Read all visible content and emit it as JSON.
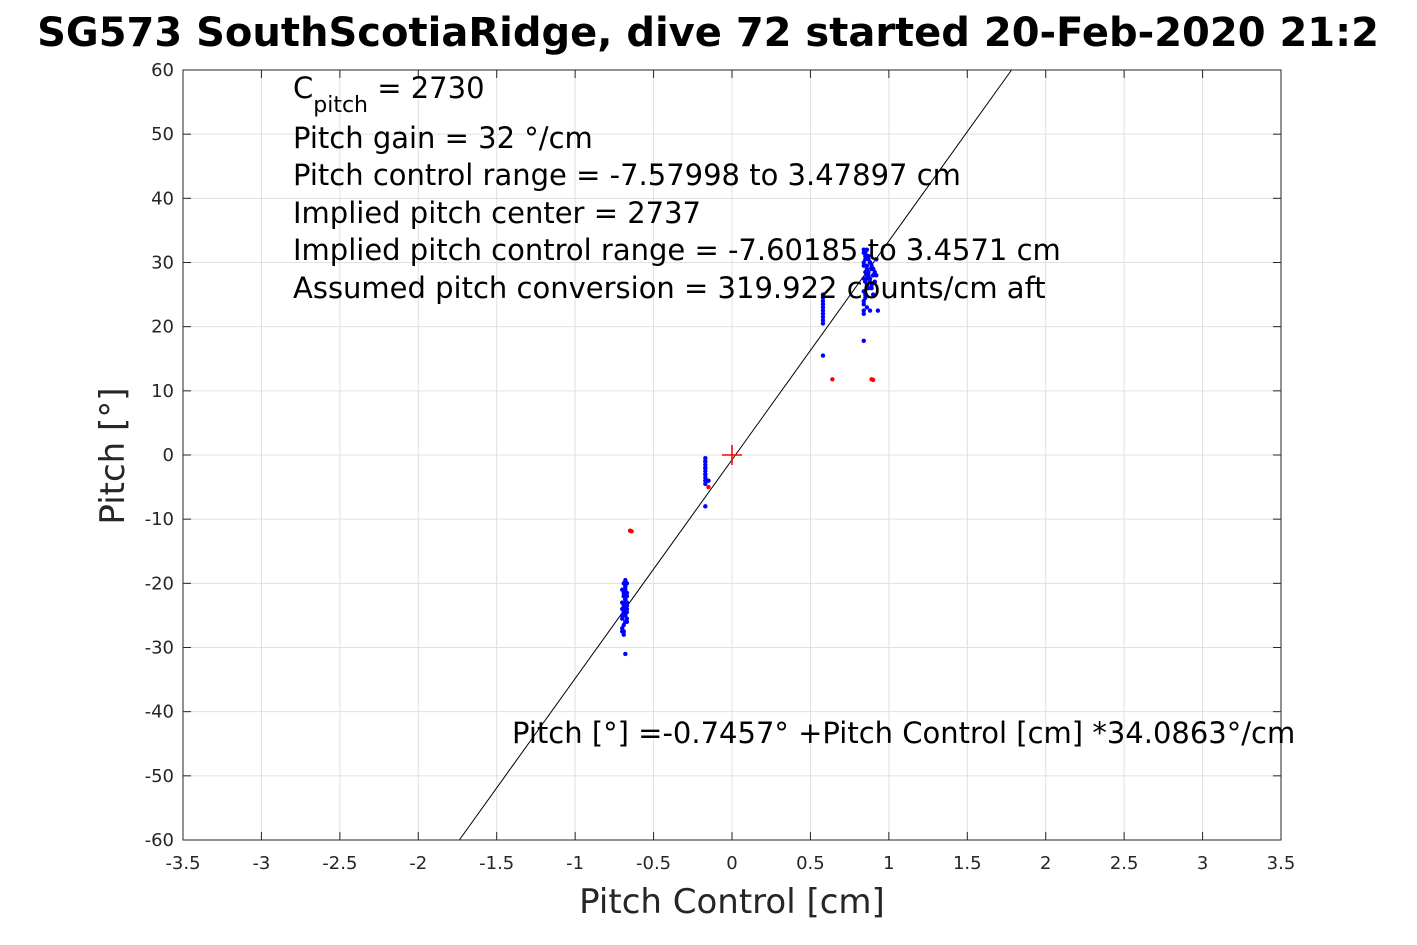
{
  "chart_data": {
    "type": "scatter",
    "title": "SG573 SouthScotiaRidge, dive 72 started 20-Feb-2020 21:2",
    "xlabel": "Pitch Control [cm]",
    "ylabel": "Pitch [°]",
    "xlim": [
      -3.5,
      3.5
    ],
    "ylim": [
      -60,
      60
    ],
    "x_ticks": [
      -3.5,
      -3,
      -2.5,
      -2,
      -1.5,
      -1,
      -0.5,
      0,
      0.5,
      1,
      1.5,
      2,
      2.5,
      3,
      3.5
    ],
    "x_tick_labels": [
      "-3.5",
      "-3",
      "-2.5",
      "-2",
      "-1.5",
      "-1",
      "-0.5",
      "0",
      "0.5",
      "1",
      "1.5",
      "2",
      "2.5",
      "3",
      "3.5"
    ],
    "y_ticks": [
      -60,
      -50,
      -40,
      -30,
      -20,
      -10,
      0,
      10,
      20,
      30,
      40,
      50,
      60
    ],
    "y_tick_labels": [
      "-60",
      "-50",
      "-40",
      "-30",
      "-20",
      "-10",
      "0",
      "10",
      "20",
      "30",
      "40",
      "50",
      "60"
    ],
    "grid": true,
    "annotations": {
      "c_pitch_main": "C",
      "c_pitch_sub": "pitch",
      "c_pitch_value": " = 2730",
      "pitch_gain": "Pitch gain = 32 °/cm",
      "pitch_control_range": "Pitch control range = -7.57998 to 3.47897 cm",
      "implied_center": "Implied pitch center = 2737",
      "implied_range": "Implied pitch control range = -7.60185 to 3.4571 cm",
      "assumed_conversion": "Assumed pitch conversion = 319.922 counts/cm aft",
      "fit_equation": "Pitch [°] =-0.7457° +Pitch Control [cm] *34.0863°/cm"
    },
    "fit_line": {
      "intercept": -0.7457,
      "slope": 34.0863,
      "color": "#000000"
    },
    "center_marker": {
      "x": 0,
      "y": 0,
      "color": "#ff0000"
    },
    "series": [
      {
        "color": "#0000ff",
        "x": [
          -0.7,
          -0.69,
          -0.68,
          -0.67,
          -0.7,
          -0.69,
          -0.68,
          -0.67,
          -0.7,
          -0.68,
          -0.69,
          -0.67,
          -0.7,
          -0.68,
          -0.69,
          -0.67,
          -0.7,
          -0.69,
          -0.68,
          -0.67,
          -0.7,
          -0.69,
          -0.68,
          -0.67,
          -0.69,
          -0.68,
          -0.68,
          -0.67,
          -0.68,
          -0.67,
          -0.67,
          -0.69,
          -0.68,
          -0.7,
          -0.69,
          -0.69,
          -0.68,
          -0.68,
          -0.68,
          -0.17,
          -0.17,
          -0.17,
          -0.17,
          -0.17,
          -0.17,
          -0.17,
          -0.17,
          -0.17,
          -0.17,
          -0.16,
          -0.17,
          -0.17,
          -0.17,
          -0.15,
          0.58,
          0.58,
          0.58,
          0.58,
          0.58,
          0.58,
          0.58,
          0.58,
          0.58,
          0.58,
          0.58,
          0.84,
          0.85,
          0.86,
          0.87,
          0.88,
          0.89,
          0.9,
          0.91,
          0.92,
          0.84,
          0.85,
          0.86,
          0.87,
          0.88,
          0.89,
          0.9,
          0.91,
          0.92,
          0.84,
          0.85,
          0.86,
          0.87,
          0.88,
          0.89,
          0.9,
          0.91,
          0.84,
          0.85,
          0.86,
          0.87,
          0.88,
          0.89,
          0.9,
          0.84,
          0.85,
          0.86,
          0.87,
          0.88,
          0.89,
          0.9,
          0.84,
          0.86,
          0.88,
          0.84,
          0.85,
          0.84,
          0.84,
          0.84,
          0.85,
          0.86,
          0.85,
          0.86,
          0.86,
          0.93,
          0.84
        ],
        "y": [
          -27.0,
          -26.5,
          -26.0,
          -25.5,
          -25.0,
          -24.5,
          -24.0,
          -23.5,
          -23.0,
          -22.5,
          -22.0,
          -21.5,
          -21.0,
          -20.5,
          -20.0,
          -26.0,
          -24.0,
          -22.0,
          -21.0,
          -23.0,
          -25.5,
          -23.5,
          -22.0,
          -24.5,
          -27.5,
          -26.0,
          -25.0,
          -24.0,
          -23.0,
          -22.0,
          -20.0,
          -21.5,
          -19.5,
          -27.5,
          -28.0,
          -24.5,
          -22.5,
          -20.5,
          -31.0,
          -0.5,
          -1.0,
          -1.5,
          -2.0,
          -2.5,
          -3.0,
          -3.5,
          -4.0,
          -4.5,
          -2.0,
          -4.0,
          -3.0,
          -1.0,
          -8.0,
          -4.0,
          20.5,
          21.0,
          21.5,
          22.0,
          22.5,
          23.0,
          23.5,
          24.0,
          24.5,
          25.0,
          15.5,
          32.0,
          31.5,
          31.0,
          30.5,
          30.0,
          29.5,
          29.0,
          28.5,
          28.0,
          27.5,
          27.0,
          26.5,
          26.0,
          30.0,
          29.0,
          28.0,
          27.0,
          30.5,
          29.5,
          28.5,
          27.5,
          31.0,
          30.0,
          29.0,
          28.0,
          27.0,
          31.5,
          30.5,
          29.5,
          28.5,
          27.5,
          26.5,
          29.0,
          30.0,
          31.0,
          32.0,
          28.0,
          27.0,
          26.0,
          25.0,
          24.0,
          23.0,
          22.5,
          25.5,
          24.5,
          23.5,
          22.5,
          22.0,
          25.0,
          26.0,
          27.0,
          28.0,
          29.0,
          22.5,
          17.8
        ]
      },
      {
        "color": "#ff0000",
        "x": [
          -0.65,
          -0.64,
          -0.15,
          0.64,
          0.89,
          0.9
        ],
        "y": [
          -11.8,
          -11.9,
          -5.0,
          11.8,
          11.8,
          11.7
        ]
      }
    ]
  }
}
